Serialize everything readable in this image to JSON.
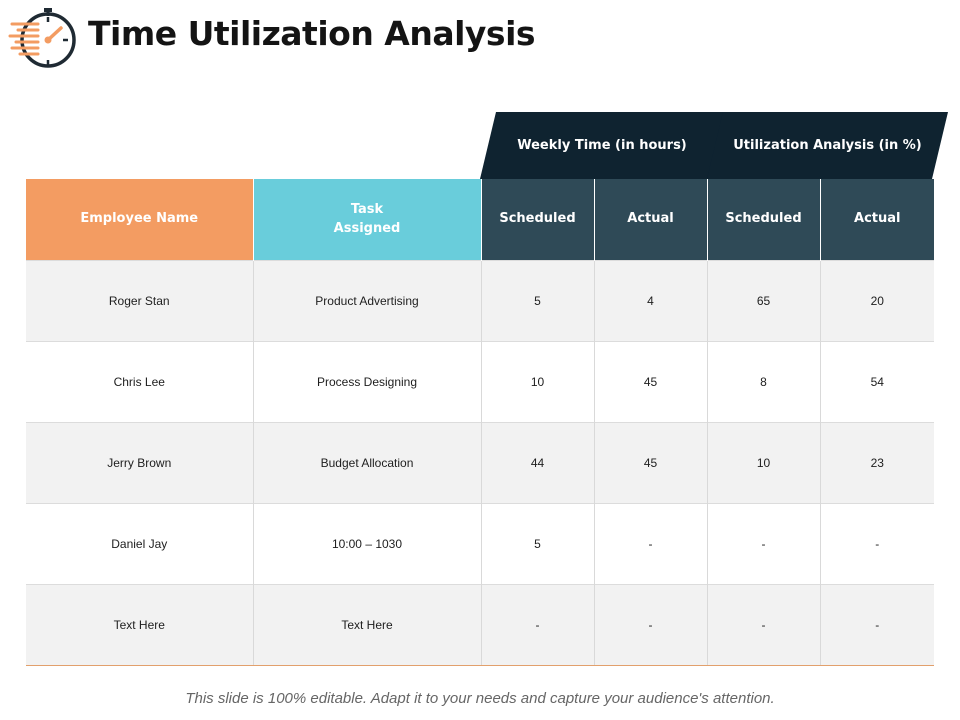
{
  "page": {
    "title": "Time Utilization Analysis",
    "footer": "This slide is 100% editable. Adapt it to your needs and capture your audience's attention."
  },
  "logo": {
    "icon": "stopwatch-icon",
    "accent": "#f39c62",
    "stroke": "#1f2a33"
  },
  "table": {
    "group_headers": [
      "Weekly Time (in hours)",
      "Utilization Analysis (in %)"
    ],
    "columns": [
      "Employee Name",
      "Task\nAssigned",
      "Scheduled",
      "Actual",
      "Scheduled",
      "Actual"
    ],
    "rows": [
      [
        "Roger Stan",
        "Product Advertising",
        "5",
        "4",
        "65",
        "20"
      ],
      [
        "Chris Lee",
        "Process Designing",
        "10",
        "45",
        "8",
        "54"
      ],
      [
        "Jerry Brown",
        "Budget Allocation",
        "44",
        "45",
        "10",
        "23"
      ],
      [
        "Daniel Jay",
        "10:00 – 1030",
        "5",
        "-",
        "-",
        "-"
      ],
      [
        "Text Here",
        "Text Here",
        "-",
        "-",
        "-",
        "-"
      ]
    ]
  },
  "colors": {
    "employee_header": "#f39c62",
    "task_header": "#69cddb",
    "column_header": "#2f4a57",
    "group_header": "#0f2330",
    "row_shade": "#f2f2f2"
  }
}
